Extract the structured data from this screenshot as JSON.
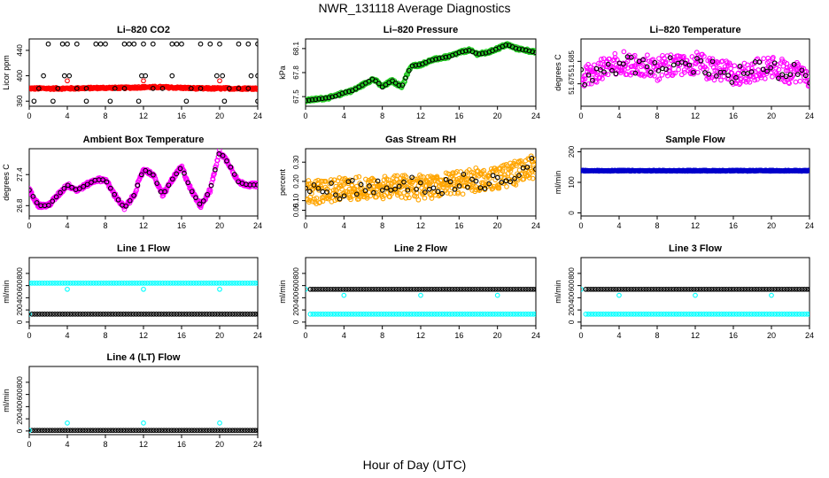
{
  "figure": {
    "title": "NWR_131118  Average Diagnostics",
    "xlabel": "Hour of Day (UTC)"
  },
  "colors": {
    "black": "#000000",
    "red": "#ff0000",
    "green": "#22cc22",
    "magenta": "#ff00ff",
    "orange": "#ffa500",
    "blue": "#0000cc",
    "cyan": "#00ffff"
  },
  "chart_data": [
    {
      "id": "co2",
      "type": "scatter",
      "title": "Li–820 CO2",
      "ylabel": "Licor ppm",
      "xlim": [
        0,
        24
      ],
      "ylim": [
        352,
        458
      ],
      "xticks": [
        "0",
        "4",
        "8",
        "12",
        "16",
        "20",
        "24"
      ],
      "yticks": [
        {
          "v": 360,
          "label": "360"
        },
        {
          "v": 400,
          "label": "400"
        },
        {
          "v": 440,
          "label": "440"
        }
      ],
      "series": [
        {
          "color": "red",
          "kind": "dense",
          "x": [
            0,
            2,
            4,
            6,
            8,
            10,
            12,
            14,
            16,
            18,
            20,
            22,
            24
          ],
          "y": [
            380,
            380,
            380,
            380.5,
            381,
            381,
            382,
            382,
            381,
            380,
            380,
            380,
            380
          ],
          "jitter": 1.5,
          "n": 400
        },
        {
          "color": "red",
          "kind": "points",
          "x": [
            4,
            12,
            20
          ],
          "y": [
            392,
            392,
            392
          ]
        },
        {
          "color": "black",
          "kind": "points",
          "x": [
            2,
            3.5,
            4,
            5,
            7,
            7.5,
            8,
            10,
            10.5,
            11,
            12,
            13,
            15,
            15.5,
            16,
            18,
            19,
            20,
            22,
            23,
            24,
            1.5,
            3.7,
            4.2,
            11.8,
            12.2,
            15,
            19.7,
            20.3,
            23.3,
            24,
            1,
            3,
            5,
            6,
            9,
            10,
            13,
            14,
            17,
            18,
            21,
            22,
            23,
            0.5,
            2.5,
            6,
            8.5,
            11.5,
            16.5,
            20.5,
            24
          ],
          "y": [
            450,
            450,
            450,
            450,
            450,
            450,
            450,
            450,
            450,
            450,
            450,
            450,
            450,
            450,
            450,
            450,
            450,
            450,
            450,
            450,
            450,
            400,
            400,
            400,
            400,
            400,
            400,
            400,
            400,
            400,
            400,
            380,
            380,
            380,
            380,
            380,
            380,
            380,
            380,
            380,
            380,
            380,
            380,
            380,
            360,
            360,
            360,
            360,
            360,
            360,
            360,
            360
          ]
        }
      ]
    },
    {
      "id": "pressure",
      "type": "scatter",
      "title": "Li–820 Pressure",
      "ylabel": "kPa",
      "xlim": [
        0,
        24
      ],
      "ylim": [
        67.38,
        68.22
      ],
      "xticks": [
        "0",
        "4",
        "8",
        "12",
        "16",
        "20",
        "24"
      ],
      "yticks": [
        {
          "v": 67.5,
          "label": "67.5"
        },
        {
          "v": 67.8,
          "label": "67.8"
        },
        {
          "v": 68.1,
          "label": "68.1"
        }
      ],
      "series": [
        {
          "color": "green",
          "kind": "dense",
          "x": [
            0,
            2,
            3,
            4,
            5,
            6,
            7,
            7.5,
            8,
            9,
            10,
            11,
            12,
            13,
            14,
            15,
            16,
            17,
            18,
            19,
            20,
            21,
            22,
            23,
            24
          ],
          "y": [
            67.45,
            67.48,
            67.5,
            67.55,
            67.58,
            67.65,
            67.72,
            67.68,
            67.62,
            67.7,
            67.62,
            67.88,
            67.9,
            67.95,
            67.98,
            68.0,
            68.05,
            68.08,
            68.03,
            68.05,
            68.1,
            68.15,
            68.1,
            68.08,
            68.05
          ],
          "jitter": 0.02,
          "n": 450
        },
        {
          "color": "black",
          "kind": "sampled",
          "x": [
            0,
            2,
            3,
            4,
            5,
            6,
            7,
            7.5,
            8,
            9,
            10,
            11,
            12,
            13,
            14,
            15,
            16,
            17,
            18,
            19,
            20,
            21,
            22,
            23,
            24
          ],
          "y": [
            67.45,
            67.48,
            67.5,
            67.55,
            67.58,
            67.65,
            67.72,
            67.68,
            67.62,
            67.7,
            67.62,
            67.88,
            67.9,
            67.95,
            67.98,
            68.0,
            68.05,
            68.08,
            68.03,
            68.05,
            68.1,
            68.15,
            68.1,
            68.08,
            68.05
          ],
          "n": 70
        }
      ]
    },
    {
      "id": "licor-temp",
      "type": "scatter",
      "title": "Li–820 Temperature",
      "ylabel": "degrees C",
      "xlim": [
        0,
        24
      ],
      "ylim": [
        51.665,
        51.695
      ],
      "xticks": [
        "0",
        "4",
        "8",
        "12",
        "16",
        "20",
        "24"
      ],
      "yticks": [
        {
          "v": 51.675,
          "label": "51.675"
        },
        {
          "v": 51.685,
          "label": "51.685"
        }
      ],
      "series": [
        {
          "color": "magenta",
          "kind": "scattered",
          "x": [
            0,
            4,
            8,
            12,
            16,
            20,
            24
          ],
          "y": [
            51.678,
            51.684,
            51.682,
            51.684,
            51.679,
            51.682,
            51.679
          ],
          "jitter": 0.005,
          "n": 380
        },
        {
          "color": "black",
          "kind": "scattered",
          "x": [
            0,
            4,
            8,
            12,
            16,
            20,
            24
          ],
          "y": [
            51.678,
            51.684,
            51.682,
            51.684,
            51.679,
            51.682,
            51.679
          ],
          "jitter": 0.004,
          "n": 60
        }
      ]
    },
    {
      "id": "box-temp",
      "type": "scatter",
      "title": "Ambient Box Temperature",
      "ylabel": "degrees C",
      "xlim": [
        0,
        24
      ],
      "ylim": [
        26.6,
        27.9
      ],
      "xticks": [
        "0",
        "4",
        "8",
        "12",
        "16",
        "20",
        "24"
      ],
      "yticks": [
        {
          "v": 26.8,
          "label": "26.8"
        },
        {
          "v": 27.4,
          "label": "27.4"
        }
      ],
      "series": [
        {
          "color": "magenta",
          "kind": "dense",
          "x": [
            0,
            1,
            2,
            3,
            4,
            5,
            6,
            7,
            8,
            9,
            10,
            11,
            12,
            13,
            14,
            15,
            16,
            17,
            18,
            19,
            20,
            21,
            22,
            23,
            24
          ],
          "y": [
            27.1,
            26.8,
            26.8,
            27.0,
            27.2,
            27.1,
            27.2,
            27.3,
            27.3,
            27.0,
            26.75,
            27.0,
            27.5,
            27.4,
            27.0,
            27.3,
            27.55,
            27.1,
            26.8,
            27.1,
            27.85,
            27.6,
            27.25,
            27.2,
            27.2
          ],
          "jitter": 0.04,
          "n": 450
        },
        {
          "color": "black",
          "kind": "sampled",
          "x": [
            0,
            1,
            2,
            3,
            4,
            5,
            6,
            7,
            8,
            9,
            10,
            11,
            12,
            13,
            14,
            15,
            16,
            17,
            18,
            19,
            20,
            21,
            22,
            23,
            24
          ],
          "y": [
            27.1,
            26.8,
            26.8,
            27.0,
            27.2,
            27.1,
            27.2,
            27.3,
            27.3,
            27.0,
            26.75,
            27.0,
            27.5,
            27.4,
            27.0,
            27.3,
            27.55,
            27.1,
            26.8,
            27.1,
            27.85,
            27.6,
            27.25,
            27.2,
            27.2
          ],
          "n": 60
        }
      ]
    },
    {
      "id": "rh",
      "type": "scatter",
      "title": "Gas Stream RH",
      "ylabel": "percent",
      "xlim": [
        0,
        24
      ],
      "ylim": [
        0.02,
        0.37
      ],
      "xticks": [
        "0",
        "4",
        "8",
        "12",
        "16",
        "20",
        "24"
      ],
      "yticks": [
        {
          "v": 0.05,
          "label": "0.05"
        },
        {
          "v": 0.1,
          "label": "0.10"
        },
        {
          "v": 0.2,
          "label": "0.20"
        },
        {
          "v": 0.3,
          "label": "0.30"
        }
      ],
      "series": [
        {
          "color": "orange",
          "kind": "scattered",
          "x": [
            0,
            4,
            8,
            12,
            16,
            20,
            24
          ],
          "y": [
            0.14,
            0.16,
            0.17,
            0.17,
            0.19,
            0.22,
            0.28
          ],
          "jitter": 0.06,
          "n": 500
        },
        {
          "color": "black",
          "kind": "scattered",
          "x": [
            0,
            4,
            8,
            12,
            16,
            20,
            24
          ],
          "y": [
            0.14,
            0.16,
            0.17,
            0.17,
            0.19,
            0.22,
            0.3
          ],
          "jitter": 0.045,
          "n": 55
        }
      ]
    },
    {
      "id": "sample-flow",
      "type": "scatter",
      "title": "Sample Flow",
      "ylabel": "ml/min",
      "xlim": [
        0,
        24
      ],
      "ylim": [
        -10,
        210
      ],
      "xticks": [
        "0",
        "4",
        "8",
        "12",
        "16",
        "20",
        "24"
      ],
      "yticks": [
        {
          "v": 0,
          "label": "0"
        },
        {
          "v": 100,
          "label": "100"
        },
        {
          "v": 200,
          "label": "200"
        }
      ],
      "series": [
        {
          "color": "black",
          "kind": "sampled",
          "x": [
            0,
            24
          ],
          "y": [
            138,
            138
          ],
          "n": 90
        },
        {
          "color": "blue",
          "kind": "dense",
          "x": [
            0,
            24
          ],
          "y": [
            138,
            138
          ],
          "jitter": 1.5,
          "n": 400
        }
      ]
    },
    {
      "id": "line1-flow",
      "type": "scatter",
      "title": "Line 1 Flow",
      "ylabel": "ml/min",
      "xlim": [
        0,
        24
      ],
      "ylim": [
        -60,
        1060
      ],
      "xticks": [
        "0",
        "4",
        "8",
        "12",
        "16",
        "20",
        "24"
      ],
      "yticks": [
        {
          "v": 0,
          "label": "0"
        },
        {
          "v": 200,
          "label": "200"
        },
        {
          "v": 400,
          "label": "400"
        },
        {
          "v": 600,
          "label": "600"
        },
        {
          "v": 800,
          "label": "800"
        }
      ],
      "series": [
        {
          "color": "cyan",
          "kind": "sampled",
          "x": [
            0,
            24
          ],
          "y": [
            640,
            640
          ],
          "n": 90
        },
        {
          "color": "cyan",
          "kind": "points",
          "x": [
            4,
            12,
            20,
            0
          ],
          "y": [
            540,
            540,
            540,
            130
          ]
        },
        {
          "color": "black",
          "kind": "sampled",
          "x": [
            0.3,
            24
          ],
          "y": [
            130,
            130
          ],
          "n": 90
        }
      ]
    },
    {
      "id": "line2-flow",
      "type": "scatter",
      "title": "Line 2 Flow",
      "ylabel": "ml/min",
      "xlim": [
        0,
        24
      ],
      "ylim": [
        -60,
        1060
      ],
      "xticks": [
        "0",
        "4",
        "8",
        "12",
        "16",
        "20",
        "24"
      ],
      "yticks": [
        {
          "v": 0,
          "label": "0"
        },
        {
          "v": 200,
          "label": "200"
        },
        {
          "v": 400,
          "label": "400"
        },
        {
          "v": 600,
          "label": "600"
        },
        {
          "v": 800,
          "label": "800"
        }
      ],
      "series": [
        {
          "color": "cyan",
          "kind": "sampled",
          "x": [
            0.5,
            24
          ],
          "y": [
            130,
            130
          ],
          "n": 90
        },
        {
          "color": "cyan",
          "kind": "points",
          "x": [
            4,
            12,
            20,
            0
          ],
          "y": [
            440,
            440,
            440,
            540
          ]
        },
        {
          "color": "black",
          "kind": "sampled",
          "x": [
            0.5,
            24
          ],
          "y": [
            540,
            540
          ],
          "n": 90
        }
      ]
    },
    {
      "id": "line3-flow",
      "type": "scatter",
      "title": "Line 3 Flow",
      "ylabel": "ml/min",
      "xlim": [
        0,
        24
      ],
      "ylim": [
        -60,
        1060
      ],
      "xticks": [
        "0",
        "4",
        "8",
        "12",
        "16",
        "20",
        "24"
      ],
      "yticks": [
        {
          "v": 0,
          "label": "0"
        },
        {
          "v": 200,
          "label": "200"
        },
        {
          "v": 400,
          "label": "400"
        },
        {
          "v": 600,
          "label": "600"
        },
        {
          "v": 800,
          "label": "800"
        }
      ],
      "series": [
        {
          "color": "cyan",
          "kind": "sampled",
          "x": [
            0.5,
            24
          ],
          "y": [
            130,
            130
          ],
          "n": 90
        },
        {
          "color": "cyan",
          "kind": "points",
          "x": [
            4,
            12,
            20,
            0
          ],
          "y": [
            440,
            440,
            440,
            540
          ]
        },
        {
          "color": "black",
          "kind": "sampled",
          "x": [
            0.5,
            24
          ],
          "y": [
            540,
            540
          ],
          "n": 90
        }
      ]
    },
    {
      "id": "line4-flow",
      "type": "scatter",
      "title": "Line 4 (LT) Flow",
      "ylabel": "ml/min",
      "xlim": [
        0,
        24
      ],
      "ylim": [
        -60,
        1060
      ],
      "xticks": [
        "0",
        "4",
        "8",
        "12",
        "16",
        "20",
        "24"
      ],
      "yticks": [
        {
          "v": 0,
          "label": "0"
        },
        {
          "v": 200,
          "label": "200"
        },
        {
          "v": 400,
          "label": "400"
        },
        {
          "v": 600,
          "label": "600"
        },
        {
          "v": 800,
          "label": "800"
        }
      ],
      "series": [
        {
          "color": "black",
          "kind": "sampled",
          "x": [
            0.3,
            24
          ],
          "y": [
            10,
            10
          ],
          "n": 90
        },
        {
          "color": "cyan",
          "kind": "points",
          "x": [
            4,
            12,
            20,
            0
          ],
          "y": [
            130,
            130,
            130,
            10
          ]
        }
      ]
    }
  ]
}
